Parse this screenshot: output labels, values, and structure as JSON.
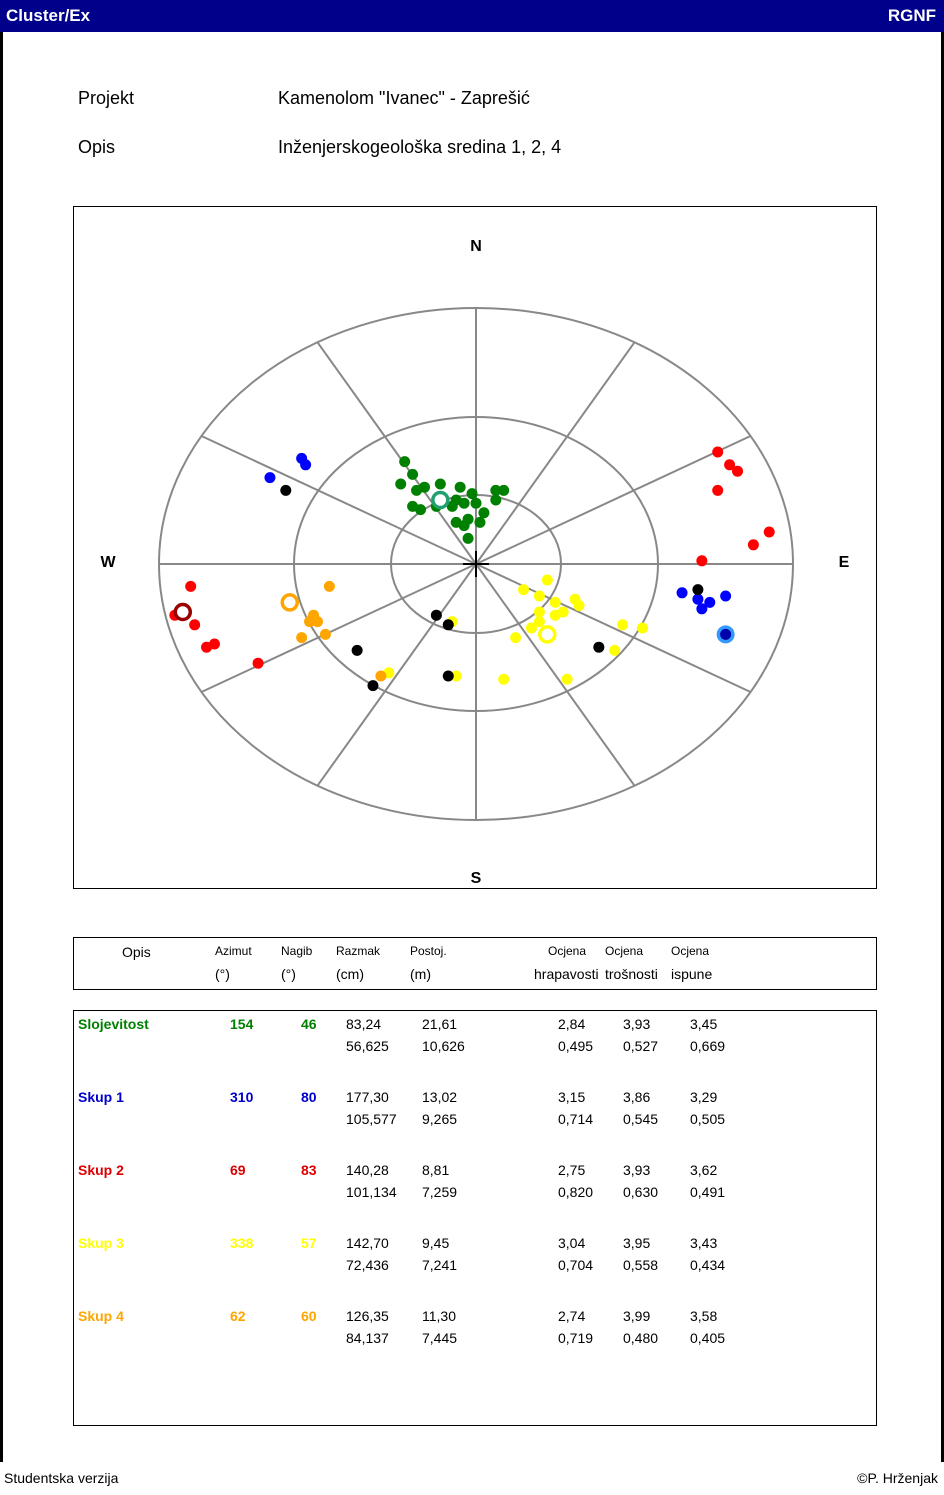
{
  "app": {
    "title": "Cluster/Ex",
    "brand": "RGNF"
  },
  "info": {
    "project_label": "Projekt",
    "project_value": "Kamenolom \"Ivanec\" - Zaprešić",
    "desc_label": "Opis",
    "desc_value": "Inženjerskogeološka sredina 1, 2, 4"
  },
  "chart_data": {
    "type": "scatter",
    "projection": "polar stereonet (equal-area), azimuth/dip",
    "directions": {
      "n": "N",
      "e": "E",
      "s": "S",
      "w": "W"
    },
    "series": [
      {
        "name": "Slojevitost",
        "color": "#008000",
        "points": [
          [
            -0.18,
            0.32
          ],
          [
            -0.16,
            0.28
          ],
          [
            -0.19,
            0.25
          ],
          [
            -0.15,
            0.23
          ],
          [
            -0.13,
            0.24
          ],
          [
            -0.09,
            0.25
          ],
          [
            -0.04,
            0.24
          ],
          [
            -0.01,
            0.22
          ],
          [
            -0.05,
            0.2
          ],
          [
            0.05,
            0.23
          ],
          [
            0.05,
            0.2
          ],
          [
            -0.16,
            0.18
          ],
          [
            -0.14,
            0.17
          ],
          [
            -0.1,
            0.18
          ],
          [
            -0.03,
            0.19
          ],
          [
            0.0,
            0.19
          ],
          [
            -0.06,
            0.18
          ],
          [
            -0.02,
            0.14
          ],
          [
            0.02,
            0.16
          ],
          [
            -0.05,
            0.13
          ],
          [
            -0.03,
            0.12
          ],
          [
            -0.02,
            0.08
          ],
          [
            0.01,
            0.13
          ],
          [
            0.07,
            0.23
          ]
        ],
        "mean": [
          -0.09,
          0.2
        ]
      },
      {
        "name": "Skup 1",
        "color": "#0000ff",
        "points": [
          [
            -0.44,
            0.33
          ],
          [
            -0.43,
            0.31
          ],
          [
            -0.52,
            0.27
          ],
          [
            0.52,
            -0.09
          ],
          [
            0.56,
            -0.11
          ],
          [
            0.59,
            -0.12
          ],
          [
            0.63,
            -0.1
          ],
          [
            0.57,
            -0.14
          ]
        ],
        "mean": [
          0.63,
          -0.22
        ]
      },
      {
        "name": "Skup 2",
        "color": "#ff0000",
        "points": [
          [
            0.61,
            0.35
          ],
          [
            0.64,
            0.31
          ],
          [
            0.66,
            0.29
          ],
          [
            0.61,
            0.23
          ],
          [
            0.74,
            0.1
          ],
          [
            0.7,
            0.06
          ],
          [
            0.57,
            0.01
          ],
          [
            -0.72,
            -0.07
          ],
          [
            -0.76,
            -0.16
          ],
          [
            -0.71,
            -0.19
          ],
          [
            -0.66,
            -0.25
          ],
          [
            -0.68,
            -0.26
          ],
          [
            -0.55,
            -0.31
          ]
        ],
        "mean": [
          -0.74,
          -0.15
        ]
      },
      {
        "name": "Skup 3",
        "color": "#ffff00",
        "points": [
          [
            0.18,
            -0.05
          ],
          [
            0.12,
            -0.08
          ],
          [
            0.16,
            -0.1
          ],
          [
            0.2,
            -0.12
          ],
          [
            0.25,
            -0.11
          ],
          [
            0.26,
            -0.13
          ],
          [
            0.22,
            -0.15
          ],
          [
            0.16,
            -0.15
          ],
          [
            0.2,
            -0.16
          ],
          [
            0.16,
            -0.18
          ],
          [
            0.14,
            -0.2
          ],
          [
            0.1,
            -0.23
          ],
          [
            0.42,
            -0.2
          ],
          [
            0.37,
            -0.19
          ],
          [
            -0.06,
            -0.18
          ],
          [
            0.07,
            -0.36
          ],
          [
            0.23,
            -0.36
          ],
          [
            -0.05,
            -0.35
          ],
          [
            0.35,
            -0.27
          ],
          [
            -0.22,
            -0.34
          ]
        ],
        "mean": [
          0.18,
          -0.22
        ]
      },
      {
        "name": "Skup 4",
        "color": "#ffa500",
        "points": [
          [
            -0.37,
            -0.07
          ],
          [
            -0.41,
            -0.16
          ],
          [
            -0.4,
            -0.18
          ],
          [
            -0.42,
            -0.18
          ],
          [
            -0.44,
            -0.23
          ],
          [
            -0.38,
            -0.22
          ],
          [
            -0.24,
            -0.35
          ]
        ],
        "mean": [
          -0.47,
          -0.12
        ]
      },
      {
        "name": "",
        "color": "#000000",
        "points": [
          [
            -0.48,
            0.23
          ],
          [
            0.56,
            -0.08
          ],
          [
            -0.1,
            -0.16
          ],
          [
            -0.07,
            -0.19
          ],
          [
            0.31,
            -0.26
          ],
          [
            -0.3,
            -0.27
          ],
          [
            -0.07,
            -0.35
          ],
          [
            -0.26,
            -0.38
          ]
        ],
        "mean": null
      }
    ]
  },
  "table": {
    "headers": [
      {
        "l1": "Opis",
        "l2": ""
      },
      {
        "l1": "Azimut",
        "l2": "(°)"
      },
      {
        "l1": "Nagib",
        "l2": "(°)"
      },
      {
        "l1": "Razmak",
        "l2": "(cm)"
      },
      {
        "l1": "Postoj.",
        "l2": "(m)"
      },
      {
        "l1": "Ocjena",
        "l2": "hrapavosti"
      },
      {
        "l1": "Ocjena",
        "l2": "trošnosti"
      },
      {
        "l1": "Ocjena",
        "l2": "ispune"
      }
    ],
    "rows": [
      {
        "name": "Slojevitost",
        "color": "#008000",
        "azimut": "154",
        "nagib": "46",
        "razmak": [
          "83,24",
          "56,625"
        ],
        "postoj": [
          "21,61",
          "10,626"
        ],
        "hrap": [
          "2,84",
          "0,495"
        ],
        "tros": [
          "3,93",
          "0,527"
        ],
        "isp": [
          "3,45",
          "0,669"
        ]
      },
      {
        "name": "Skup 1",
        "color": "#0000cd",
        "azimut": "310",
        "nagib": "80",
        "razmak": [
          "177,30",
          "105,577"
        ],
        "postoj": [
          "13,02",
          "9,265"
        ],
        "hrap": [
          "3,15",
          "0,714"
        ],
        "tros": [
          "3,86",
          "0,545"
        ],
        "isp": [
          "3,29",
          "0,505"
        ]
      },
      {
        "name": "Skup 2",
        "color": "#dd0000",
        "azimut": "69",
        "nagib": "83",
        "razmak": [
          "140,28",
          "101,134"
        ],
        "postoj": [
          "8,81",
          "7,259"
        ],
        "hrap": [
          "2,75",
          "0,820"
        ],
        "tros": [
          "3,93",
          "0,630"
        ],
        "isp": [
          "3,62",
          "0,491"
        ]
      },
      {
        "name": "Skup 3",
        "color": "#ffff00",
        "azimut": "338",
        "nagib": "57",
        "razmak": [
          "142,70",
          "72,436"
        ],
        "postoj": [
          "9,45",
          "7,241"
        ],
        "hrap": [
          "3,04",
          "0,704"
        ],
        "tros": [
          "3,95",
          "0,558"
        ],
        "isp": [
          "3,43",
          "0,434"
        ]
      },
      {
        "name": "Skup 4",
        "color": "#ffa500",
        "azimut": "62",
        "nagib": "60",
        "razmak": [
          "126,35",
          "84,137"
        ],
        "postoj": [
          "11,30",
          "7,445"
        ],
        "hrap": [
          "2,74",
          "0,719"
        ],
        "tros": [
          "3,99",
          "0,480"
        ],
        "isp": [
          "3,58",
          "0,405"
        ]
      }
    ]
  },
  "footer": {
    "left": "Studentska verzija",
    "right": "©P. Hrženjak"
  }
}
